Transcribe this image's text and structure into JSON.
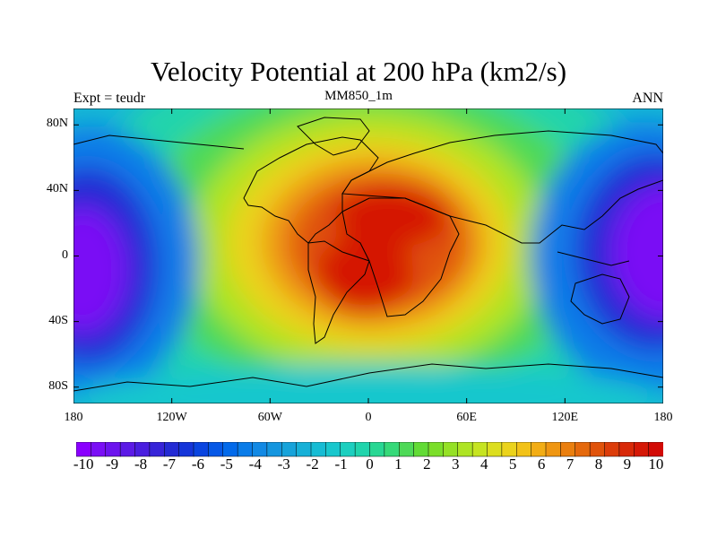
{
  "title": "Velocity Potential at 200 hPa (km2/s)",
  "left_string": "Expt = teudr",
  "center_string": "MM850_1m",
  "right_string": "ANN",
  "lat_ticks": [
    {
      "value": 80,
      "label": "80N"
    },
    {
      "value": 40,
      "label": "40N"
    },
    {
      "value": 0,
      "label": "0"
    },
    {
      "value": -40,
      "label": "40S"
    },
    {
      "value": -80,
      "label": "80S"
    }
  ],
  "lon_ticks": [
    {
      "value": -180,
      "label": "180"
    },
    {
      "value": -120,
      "label": "120W"
    },
    {
      "value": -60,
      "label": "60W"
    },
    {
      "value": 0,
      "label": "0"
    },
    {
      "value": 60,
      "label": "60E"
    },
    {
      "value": 120,
      "label": "120E"
    },
    {
      "value": 180,
      "label": "180"
    }
  ],
  "lon_range": [
    -180,
    180
  ],
  "lat_range": [
    -90,
    90
  ],
  "colorbar": {
    "colors": [
      "#8a00ff",
      "#7a0ff5",
      "#6c14ee",
      "#5c1ae6",
      "#4a1edf",
      "#3724d8",
      "#242bd4",
      "#1535d9",
      "#0a45e0",
      "#0658e6",
      "#036aea",
      "#0a7ce8",
      "#1289e4",
      "#1596df",
      "#17a3da",
      "#17b0d7",
      "#17bcd4",
      "#19c7cd",
      "#1ccfbf",
      "#20d4ac",
      "#28d793",
      "#36d979",
      "#4ed957",
      "#62db35",
      "#7bde2a",
      "#95e126",
      "#aee424",
      "#c6e421",
      "#dcde1f",
      "#ebd31c",
      "#f2c218",
      "#f2ad15",
      "#ef9612",
      "#ea7f0f",
      "#e5690d",
      "#e0530b",
      "#dc3d0a",
      "#d82908",
      "#d51806",
      "#d20a05"
    ],
    "labels": [
      "-10",
      "-9",
      "-8",
      "-7",
      "-6",
      "-5",
      "-4",
      "-3",
      "-2",
      "-1",
      "0",
      "1",
      "2",
      "3",
      "4",
      "5",
      "6",
      "7",
      "8",
      "9",
      "10"
    ],
    "levels": [
      -10,
      -9.5,
      -9,
      -8.5,
      -8,
      -7.5,
      -7,
      -6.5,
      -6,
      -5.5,
      -5,
      -4.5,
      -4,
      -3.5,
      -3,
      -2.5,
      -2,
      -1.5,
      -1,
      -0.5,
      0,
      0.5,
      1,
      1.5,
      2,
      2.5,
      3,
      3.5,
      4,
      4.5,
      5,
      5.5,
      6,
      6.5,
      7,
      7.5,
      8,
      8.5,
      9,
      9.5,
      10
    ]
  },
  "field_centers": [
    {
      "name": "divergence-max",
      "lon": 15,
      "lat": 5,
      "value": 10
    },
    {
      "name": "convergence-min-west",
      "lon": -175,
      "lat": -5,
      "value": -10
    },
    {
      "name": "convergence-min-east",
      "lon": 165,
      "lat": 0,
      "value": -10
    }
  ]
}
